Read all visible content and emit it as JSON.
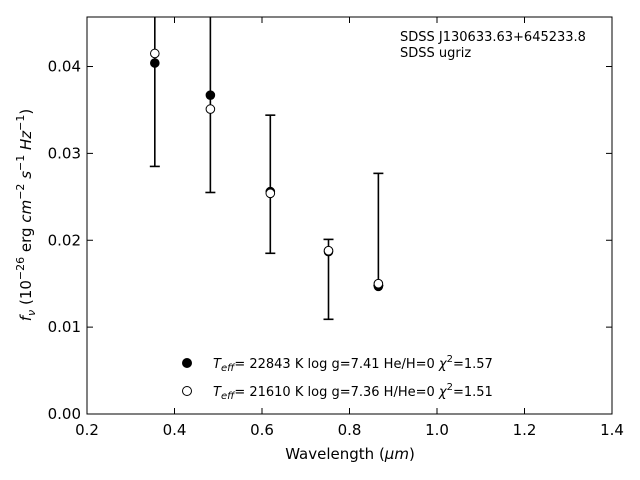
{
  "chart_data": {
    "type": "scatter",
    "xlabel_text": "Wavelength (",
    "xlabel_unit": "μm",
    "xlabel_close": ")",
    "ylabel_f": "f",
    "ylabel_sub": "ν",
    "ylabel_open": " (10",
    "ylabel_exp1": "−26",
    "ylabel_erg": " erg ",
    "ylabel_cm": "cm",
    "ylabel_exp2": "−2",
    "ylabel_s": " s",
    "ylabel_exp3": "−1",
    "ylabel_hz": " Hz",
    "ylabel_exp4": "−1",
    "ylabel_close": ")",
    "xlim": [
      0.2,
      1.4
    ],
    "ylim": [
      0.0,
      0.0457
    ],
    "xticks": [
      0.2,
      0.4,
      0.6,
      0.8,
      1.0,
      1.2,
      1.4
    ],
    "xtick_labels": [
      "0.2",
      "0.4",
      "0.6",
      "0.8",
      "1.0",
      "1.2",
      "1.4"
    ],
    "yticks": [
      0.0,
      0.01,
      0.02,
      0.03,
      0.04
    ],
    "ytick_labels": [
      "0.00",
      "0.01",
      "0.02",
      "0.03",
      "0.04"
    ],
    "grid": false,
    "annotations": [
      "SDSS J130633.63+645233.8",
      "SDSS ugriz"
    ],
    "observed": {
      "x": [
        0.355,
        0.482,
        0.619,
        0.752,
        0.866
      ],
      "y": [
        0.0405,
        0.0367,
        0.0256,
        0.0188,
        0.0148
      ],
      "yerr_low": [
        0.0285,
        0.0255,
        0.0185,
        0.0109,
        0.0148
      ],
      "yerr_high": [
        0.0525,
        0.0479,
        0.0344,
        0.0201,
        0.0277
      ]
    },
    "series": [
      {
        "marker": "filled",
        "teff_label": "T",
        "teff_sub": "eff",
        "text": "= 22843 K  log g=7.41  He/H=0  ",
        "chi": "χ",
        "chi_sup": "2",
        "chi_val": "=1.57",
        "x": [
          0.355,
          0.482,
          0.619,
          0.752,
          0.866
        ],
        "y": [
          0.0404,
          0.0367,
          0.0256,
          0.0187,
          0.0147
        ]
      },
      {
        "marker": "open",
        "teff_label": "T",
        "teff_sub": "eff",
        "text": "= 21610 K  log g=7.36  H/He=0  ",
        "chi": "χ",
        "chi_sup": "2",
        "chi_val": "=1.51",
        "x": [
          0.355,
          0.482,
          0.619,
          0.752,
          0.866
        ],
        "y": [
          0.0415,
          0.0351,
          0.0254,
          0.0188,
          0.015
        ]
      }
    ],
    "legend_position": "bottom-center"
  }
}
